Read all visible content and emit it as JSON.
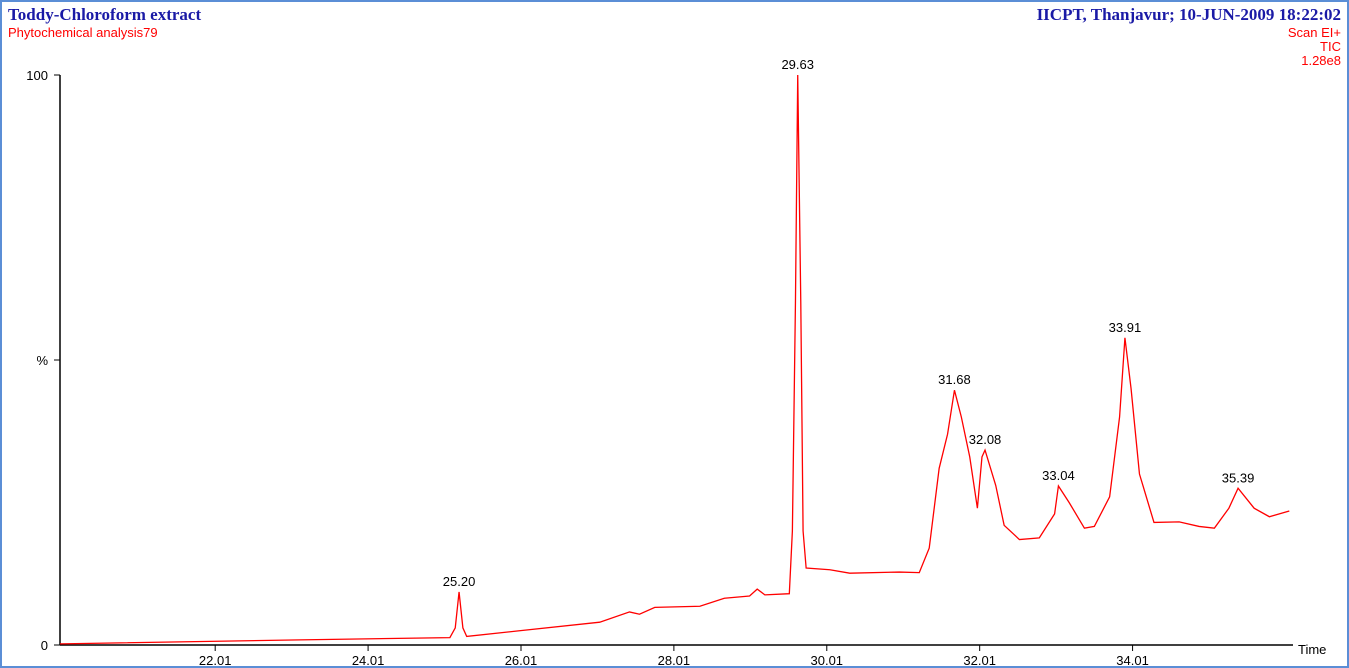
{
  "chart_data": {
    "type": "line",
    "title": "Toddy-Chloroform extract",
    "subtitle": "Phytochemical analysis79",
    "header_right": "IICPT, Thanjavur; 10-JUN-2009 18:22:02",
    "scan_info": [
      "Scan  EI+",
      "TIC",
      "1.28e8"
    ],
    "x_label": "Time",
    "color": "#ff0000",
    "xlim": [
      19.98,
      36.2
    ],
    "ylim": [
      0,
      100
    ],
    "xticks": [
      {
        "value": 22.01,
        "label": "22.01"
      },
      {
        "value": 24.01,
        "label": "24.01"
      },
      {
        "value": 26.01,
        "label": "26.01"
      },
      {
        "value": 28.01,
        "label": "28.01"
      },
      {
        "value": 30.01,
        "label": "30.01"
      },
      {
        "value": 32.01,
        "label": "32.01"
      },
      {
        "value": 34.01,
        "label": "34.01"
      }
    ],
    "yticks": [
      0,
      {
        "value": 50,
        "label": "%"
      },
      100
    ],
    "x": [
      19.98,
      23.12,
      25.08,
      25.15,
      25.2,
      25.25,
      25.3,
      25.99,
      27.04,
      27.43,
      27.56,
      27.76,
      28.35,
      28.67,
      29.0,
      29.1,
      29.2,
      29.52,
      29.56,
      29.6,
      29.63,
      29.67,
      29.7,
      29.74,
      30.05,
      30.31,
      30.96,
      31.22,
      31.35,
      31.48,
      31.59,
      31.68,
      31.77,
      31.88,
      31.98,
      32.04,
      32.08,
      32.22,
      32.33,
      32.53,
      32.79,
      32.99,
      33.04,
      33.18,
      33.38,
      33.51,
      33.71,
      33.84,
      33.91,
      33.99,
      34.1,
      34.29,
      34.62,
      34.88,
      35.08,
      35.27,
      35.39,
      35.6,
      35.8,
      36.06
    ],
    "values": [
      0.2,
      0.9,
      1.3,
      3,
      9.3,
      3,
      1.5,
      2.5,
      4.0,
      5.8,
      5.4,
      6.6,
      6.8,
      8.2,
      8.6,
      9.8,
      8.8,
      9.0,
      20,
      60,
      100,
      60,
      20,
      13.5,
      13.2,
      12.6,
      12.8,
      12.7,
      17,
      31,
      37,
      44.7,
      40,
      33,
      24,
      33,
      34.2,
      28,
      21,
      18.5,
      18.8,
      23,
      27.9,
      25,
      20.5,
      20.8,
      26,
      40,
      53.9,
      45,
      30,
      21.5,
      21.6,
      20.8,
      20.5,
      24,
      27.5,
      24,
      22.5,
      23.5
    ],
    "annotations": [
      {
        "x": 25.2,
        "y": 9.3,
        "label": "25.20"
      },
      {
        "x": 29.63,
        "y": 100,
        "label": "29.63"
      },
      {
        "x": 31.68,
        "y": 44.7,
        "label": "31.68"
      },
      {
        "x": 32.08,
        "y": 34.2,
        "label": "32.08"
      },
      {
        "x": 33.04,
        "y": 27.9,
        "label": "33.04"
      },
      {
        "x": 33.91,
        "y": 53.9,
        "label": "33.91"
      },
      {
        "x": 35.39,
        "y": 27.5,
        "label": "35.39"
      }
    ]
  }
}
